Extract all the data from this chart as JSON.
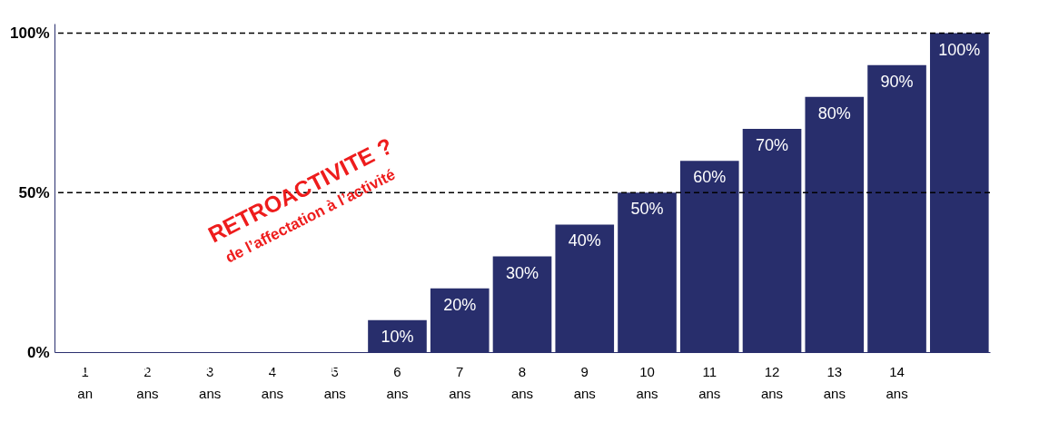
{
  "chart_data": {
    "type": "bar",
    "categories": [
      "1 an",
      "2 ans",
      "3 ans",
      "4 ans",
      "5 ans",
      "6 ans",
      "7 ans",
      "8 ans",
      "9 ans",
      "10 ans",
      "11 ans",
      "12 ans",
      "13 ans",
      "14 ans",
      null
    ],
    "values": [
      0,
      0,
      0,
      0,
      0,
      10,
      20,
      30,
      40,
      50,
      60,
      70,
      80,
      90,
      100
    ],
    "value_labels": [
      null,
      null,
      null,
      null,
      null,
      "10%",
      "20%",
      "30%",
      "40%",
      "50%",
      "60%",
      "70%",
      "80%",
      "90%",
      "100%"
    ],
    "color": "#282e6c",
    "ylim": [
      0,
      103
    ],
    "yticks": [
      {
        "value": 0,
        "label": "0%"
      },
      {
        "value": 50,
        "label": "50%"
      },
      {
        "value": 100,
        "label": "100%"
      }
    ],
    "grid": false,
    "ref_lines": [
      {
        "axis": "y",
        "value": 50,
        "line_style": "dashed",
        "color": "#000000"
      },
      {
        "axis": "y",
        "value": 100,
        "line_style": "dashed",
        "color": "#000000"
      }
    ],
    "annotations": [
      "RETROACTIVITE ?",
      "de l’affectation à l’activité"
    ]
  }
}
